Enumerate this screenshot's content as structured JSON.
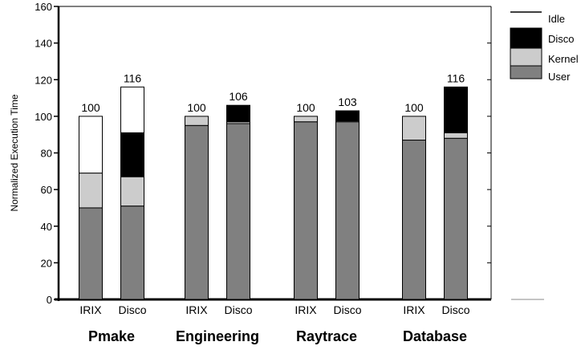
{
  "chart_data": {
    "type": "bar",
    "stacked": true,
    "ylabel": "Normalized Execution Time",
    "xlabel": "",
    "ylim": [
      0,
      160
    ],
    "yticks": [
      0,
      20,
      40,
      60,
      80,
      100,
      120,
      140,
      160
    ],
    "legend_position": "right",
    "groups": [
      {
        "name": "Pmake",
        "bars": [
          {
            "label": "IRIX",
            "total": 100,
            "User": 50,
            "Kernel": 19,
            "Disco": 0,
            "Idle": 31
          },
          {
            "label": "Disco",
            "total": 116,
            "User": 51,
            "Kernel": 16,
            "Disco": 24,
            "Idle": 25
          }
        ]
      },
      {
        "name": "Engineering",
        "bars": [
          {
            "label": "IRIX",
            "total": 100,
            "User": 95,
            "Kernel": 5,
            "Disco": 0,
            "Idle": 0
          },
          {
            "label": "Disco",
            "total": 106,
            "User": 96,
            "Kernel": 1,
            "Disco": 9,
            "Idle": 0
          }
        ]
      },
      {
        "name": "Raytrace",
        "bars": [
          {
            "label": "IRIX",
            "total": 100,
            "User": 97,
            "Kernel": 3,
            "Disco": 0,
            "Idle": 0
          },
          {
            "label": "Disco",
            "total": 103,
            "User": 97,
            "Kernel": 0.5,
            "Disco": 5.5,
            "Idle": 0
          }
        ]
      },
      {
        "name": "Database",
        "bars": [
          {
            "label": "IRIX",
            "total": 100,
            "User": 87,
            "Kernel": 13,
            "Disco": 0,
            "Idle": 0
          },
          {
            "label": "Disco",
            "total": 116,
            "User": 88,
            "Kernel": 3,
            "Disco": 25,
            "Idle": 0
          }
        ]
      }
    ],
    "series": [
      {
        "name": "User",
        "color": "#808080"
      },
      {
        "name": "Kernel",
        "color": "#cccccc"
      },
      {
        "name": "Disco",
        "color": "#000000"
      },
      {
        "name": "Idle",
        "color": "#ffffff"
      }
    ],
    "legend_order": [
      "Idle",
      "Disco",
      "Kernel",
      "User"
    ]
  }
}
